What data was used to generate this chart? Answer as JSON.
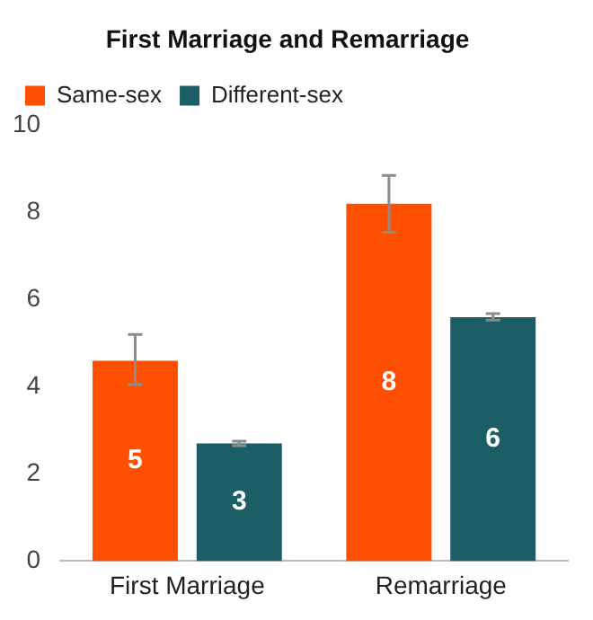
{
  "chart_data": {
    "type": "bar",
    "title": "First Marriage and Remarriage",
    "categories": [
      "First Marriage",
      "Remarriage"
    ],
    "series": [
      {
        "name": "Same-sex",
        "color": "#fe5000",
        "values": [
          4.6,
          8.2
        ],
        "errors": [
          [
            4.05,
            5.2
          ],
          [
            7.55,
            8.85
          ]
        ],
        "value_labels": [
          "5",
          "8"
        ]
      },
      {
        "name": "Different-sex",
        "color": "#1b5e66",
        "values": [
          2.7,
          5.6
        ],
        "errors": [
          [
            2.65,
            2.75
          ],
          [
            5.53,
            5.68
          ]
        ],
        "value_labels": [
          "3",
          "6"
        ]
      }
    ],
    "ylim": [
      0,
      10
    ],
    "yticks": [
      0,
      2,
      4,
      6,
      8,
      10
    ],
    "grid": false,
    "legend": "top left"
  }
}
